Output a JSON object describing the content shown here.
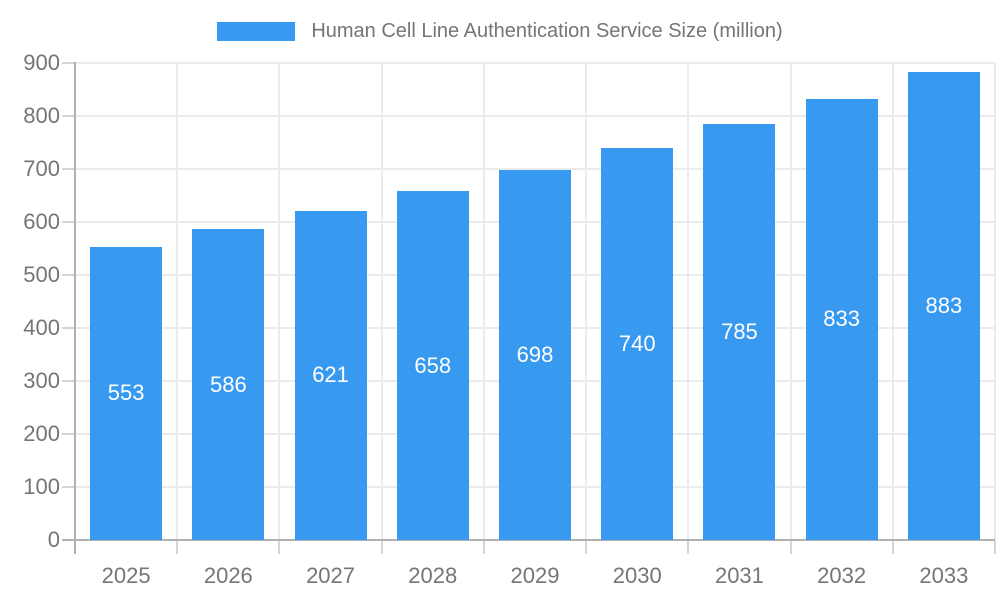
{
  "legend": {
    "label": "Human Cell Line Authentication Service Size (million)"
  },
  "colors": {
    "bar": "#3899f0",
    "grid": "#ebebeb",
    "axis": "#b0b0b0",
    "tick": "#d4d4d4",
    "axis_label": "#757575",
    "value_label": "#ffffff",
    "background": "#ffffff"
  },
  "chart_data": {
    "type": "bar",
    "title": "Human Cell Line Authentication Service Size (million)",
    "categories": [
      "2025",
      "2026",
      "2027",
      "2028",
      "2029",
      "2030",
      "2031",
      "2032",
      "2033"
    ],
    "values": [
      553,
      586,
      621,
      658,
      698,
      740,
      785,
      833,
      883
    ],
    "xlabel": "",
    "ylabel": "",
    "ylim": [
      0,
      900
    ],
    "yticks": [
      0,
      100,
      200,
      300,
      400,
      500,
      600,
      700,
      800,
      900
    ],
    "grid": true,
    "legend_position": "top-center",
    "value_label_position": "inside-center"
  }
}
